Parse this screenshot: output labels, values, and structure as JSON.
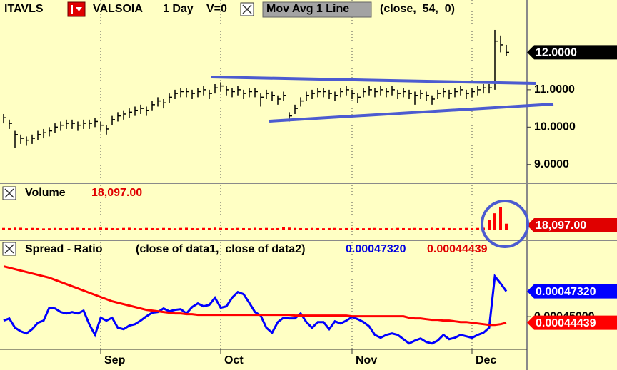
{
  "chart_data": [
    {
      "type": "ohlc",
      "symbol": "ITAVLS",
      "name": "VALSOIA",
      "interval": "1 Day",
      "volume_setting": "V=0",
      "study": "Mov Avg 1 Line",
      "study_params": "(close,  54,  0)",
      "color": "#000000",
      "high": [
        10.35,
        10.2,
        9.9,
        9.8,
        9.75,
        9.8,
        9.9,
        9.95,
        10.0,
        10.1,
        10.15,
        10.2,
        10.2,
        10.15,
        10.2,
        10.2,
        10.25,
        10.15,
        10.05,
        10.3,
        10.4,
        10.45,
        10.5,
        10.55,
        10.6,
        10.55,
        10.7,
        10.8,
        10.75,
        10.9,
        11.0,
        11.05,
        11.05,
        11.0,
        11.05,
        11.1,
        11.0,
        11.15,
        11.2,
        11.1,
        11.05,
        11.1,
        11.0,
        11.05,
        11.05,
        10.9,
        11.0,
        10.95,
        10.85,
        10.95,
        10.4,
        10.6,
        10.8,
        10.95,
        11.0,
        11.05,
        11.05,
        11.0,
        10.95,
        11.05,
        11.1,
        11.0,
        10.9,
        11.05,
        11.1,
        11.05,
        11.1,
        11.05,
        11.1,
        11.0,
        11.05,
        11.0,
        10.95,
        11.0,
        10.95,
        10.85,
        11.0,
        11.05,
        11.0,
        11.05,
        11.1,
        11.0,
        11.05,
        11.1,
        11.15,
        11.15,
        12.6,
        12.45,
        12.2
      ],
      "low": [
        10.1,
        9.95,
        9.45,
        9.55,
        9.5,
        9.55,
        9.65,
        9.7,
        9.75,
        9.85,
        9.9,
        9.95,
        9.95,
        9.9,
        9.95,
        9.95,
        10.0,
        9.9,
        9.8,
        10.05,
        10.15,
        10.2,
        10.25,
        10.3,
        10.35,
        10.3,
        10.45,
        10.55,
        10.5,
        10.65,
        10.75,
        10.8,
        10.8,
        10.75,
        10.8,
        10.85,
        10.75,
        10.9,
        10.95,
        10.85,
        10.8,
        10.85,
        10.75,
        10.8,
        10.8,
        10.55,
        10.75,
        10.7,
        10.6,
        10.7,
        10.15,
        10.35,
        10.55,
        10.7,
        10.75,
        10.8,
        10.8,
        10.75,
        10.7,
        10.8,
        10.85,
        10.75,
        10.65,
        10.8,
        10.85,
        10.8,
        10.85,
        10.8,
        10.85,
        10.75,
        10.8,
        10.75,
        10.6,
        10.75,
        10.7,
        10.6,
        10.75,
        10.8,
        10.75,
        10.8,
        10.85,
        10.75,
        10.8,
        10.85,
        10.9,
        10.9,
        11.0,
        12.0,
        11.9
      ],
      "close": [
        10.25,
        10.1,
        9.8,
        9.7,
        9.65,
        9.7,
        9.8,
        9.85,
        9.9,
        10.0,
        10.05,
        10.1,
        10.1,
        10.05,
        10.1,
        10.1,
        10.15,
        10.05,
        9.95,
        10.2,
        10.3,
        10.35,
        10.4,
        10.45,
        10.5,
        10.45,
        10.6,
        10.7,
        10.65,
        10.8,
        10.9,
        10.95,
        10.95,
        10.9,
        10.95,
        11.0,
        10.9,
        11.05,
        11.1,
        11.0,
        10.95,
        11.0,
        10.9,
        10.95,
        10.95,
        10.8,
        10.9,
        10.85,
        10.75,
        10.85,
        10.3,
        10.5,
        10.7,
        10.85,
        10.9,
        10.95,
        10.95,
        10.9,
        10.85,
        10.95,
        11.0,
        10.9,
        10.8,
        10.95,
        11.0,
        10.95,
        11.0,
        10.95,
        11.0,
        10.9,
        10.95,
        10.9,
        10.85,
        10.9,
        10.85,
        10.75,
        10.9,
        10.95,
        10.9,
        10.95,
        11.0,
        10.9,
        10.95,
        11.0,
        11.05,
        11.05,
        12.3,
        12.2,
        12.0
      ],
      "last_label": "12.0000",
      "ylim": [
        8.5,
        13.4
      ],
      "yticks": [
        {
          "value": 9,
          "label": "9.0000"
        },
        {
          "value": 10,
          "label": "10.0000"
        },
        {
          "value": 11,
          "label": "11.0000"
        }
      ]
    },
    {
      "type": "bar",
      "title": "Volume",
      "color": "#ff0000",
      "values": [
        5000,
        4500,
        6000,
        5500,
        4000,
        5000,
        4500,
        3500,
        4000,
        5000,
        4500,
        4000,
        5000,
        5500,
        4500,
        4000,
        5000,
        6000,
        5000,
        4500,
        4000,
        5000,
        5500,
        4500,
        4000,
        5000,
        4500,
        4000,
        5000,
        4500,
        4000,
        5000,
        5500,
        4500,
        4000,
        5000,
        4500,
        6000,
        5000,
        4500,
        4000,
        5000,
        4500,
        4000,
        5500,
        4500,
        5000,
        4000,
        4500,
        7000,
        6000,
        5000,
        4500,
        4000,
        5000,
        4500,
        4000,
        4500,
        5000,
        4000,
        4500,
        5000,
        4500,
        4000,
        4500,
        5000,
        4000,
        4500,
        4000,
        5000,
        4500,
        4000,
        5000,
        4500,
        4000,
        5500,
        4500,
        5000,
        4500,
        4000,
        4500,
        5000,
        4500,
        5000,
        5500,
        30000,
        50000,
        68000,
        18097
      ],
      "last_label": "18,097.00",
      "ylim": [
        0,
        140000
      ]
    },
    {
      "type": "line",
      "title": "Spread - Ratio",
      "subtitle": "(close of data1,  close of data2)",
      "categories": [
        null,
        null,
        null,
        null,
        null,
        null,
        null,
        null,
        null,
        null,
        null,
        null,
        null,
        null,
        null,
        null,
        null,
        "Sep",
        null,
        null,
        null,
        null,
        null,
        null,
        null,
        null,
        null,
        null,
        null,
        null,
        null,
        null,
        null,
        null,
        null,
        null,
        null,
        null,
        "Oct",
        null,
        null,
        null,
        null,
        null,
        null,
        null,
        null,
        null,
        null,
        null,
        null,
        null,
        null,
        null,
        null,
        null,
        null,
        null,
        null,
        null,
        null,
        "Nov",
        null,
        null,
        null,
        null,
        null,
        null,
        null,
        null,
        null,
        null,
        null,
        null,
        null,
        null,
        null,
        null,
        null,
        null,
        null,
        null,
        "Dec",
        null,
        null,
        null,
        null,
        null,
        null
      ],
      "series": [
        {
          "color": "#0000ff",
          "last_label": "0.00047320",
          "values": [
            0.00044635,
            0.00044832,
            0.0004398,
            0.00043653,
            0.00043456,
            0.00043849,
            0.00044438,
            0.00044635,
            0.00045814,
            0.00045749,
            0.00045421,
            0.0004529,
            0.00045421,
            0.0004529,
            0.00045552,
            0.00044308,
            0.00043325,
            0.00044897,
            0.00044635,
            0.00044897,
            0.0004398,
            0.00043849,
            0.00044177,
            0.00044308,
            0.00044635,
            0.00045028,
            0.00045356,
            0.00045421,
            0.00045749,
            0.00045487,
            0.00045618,
            0.00045683,
            0.0004529,
            0.0004588,
            0.00046207,
            0.00045945,
            0.00046076,
            0.00046731,
            0.00045814,
            0.00045945,
            0.00046731,
            0.00047255,
            0.00047059,
            0.00046273,
            0.00045421,
            0.00045094,
            0.0004398,
            0.00043522,
            0.00044504,
            0.00044897,
            0.00044832,
            0.00044832,
            0.0004529,
            0.00044504,
            0.0004398,
            0.00044504,
            0.00044504,
            0.00043849,
            0.0004457,
            0.00044373,
            0.00044635,
            0.00044963,
            0.00044766,
            0.00044504,
            0.00044111,
            0.00043325,
            0.00043063,
            0.00043325,
            0.00043456,
            0.00043325,
            0.00042932,
            0.00042539,
            0.00042801,
            0.00042998,
            0.0004267,
            0.00042539,
            0.00042801,
            0.00043325,
            0.00042932,
            0.00043063,
            0.00043325,
            0.00043194,
            0.00043063,
            0.00043325,
            0.00043522,
            0.0004398,
            0.00048696,
            0.00048041,
            0.0004732
          ]
        },
        {
          "color": "#ff0000",
          "last_label": "0.00044439",
          "values": [
            0.00049613,
            0.00049482,
            0.00049351,
            0.0004922,
            0.00049089,
            0.00048958,
            0.00048827,
            0.00048696,
            0.00048565,
            0.00048369,
            0.00048172,
            0.00047976,
            0.00047779,
            0.00047583,
            0.00047386,
            0.0004719,
            0.00046993,
            0.00046797,
            0.000466,
            0.00046404,
            0.00046273,
            0.00046142,
            0.00046011,
            0.0004588,
            0.00045749,
            0.00045618,
            0.00045552,
            0.00045487,
            0.00045421,
            0.00045356,
            0.0004529,
            0.0004529,
            0.00045225,
            0.00045225,
            0.00045159,
            0.00045159,
            0.00045159,
            0.00045159,
            0.00045159,
            0.00045159,
            0.00045159,
            0.00045159,
            0.00045159,
            0.00045159,
            0.00045159,
            0.00045159,
            0.00045159,
            0.00045159,
            0.00045159,
            0.00045159,
            0.00045159,
            0.00045094,
            0.00045094,
            0.00045094,
            0.00045094,
            0.00045094,
            0.00045094,
            0.00045094,
            0.00045094,
            0.00045094,
            0.00045094,
            0.00045028,
            0.00045028,
            0.00045028,
            0.00045028,
            0.00045028,
            0.00045028,
            0.00045028,
            0.00045028,
            0.00045028,
            0.00045028,
            0.00044897,
            0.00044832,
            0.00044832,
            0.00044766,
            0.00044701,
            0.00044701,
            0.00044635,
            0.00044635,
            0.0004457,
            0.00044504,
            0.00044504,
            0.00044438,
            0.00044373,
            0.00044308,
            0.00044242,
            0.00044242,
            0.00044308,
            0.00044439
          ]
        }
      ],
      "ylim": [
        0.00042,
        0.00052
      ],
      "yticks": [
        {
          "value": 0.00045,
          "label": "0.00045000"
        }
      ]
    }
  ]
}
